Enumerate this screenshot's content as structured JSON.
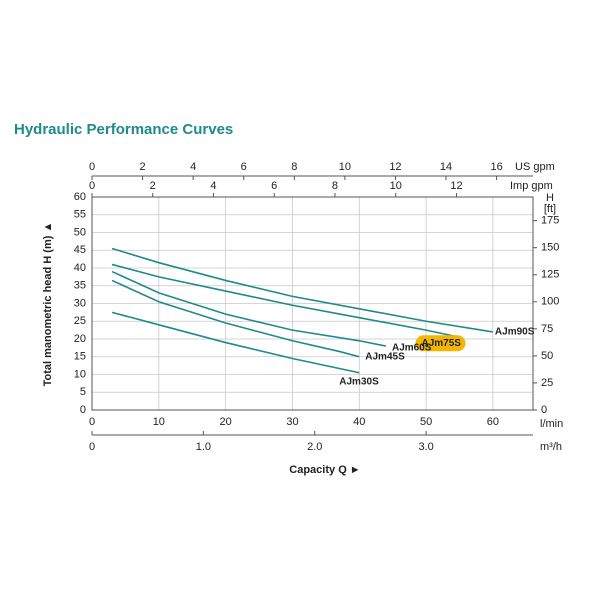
{
  "page_title": "Hydraulic Performance Curves",
  "chart_data": {
    "type": "line",
    "ylabel": "Total manometric head H (m) ▲",
    "xtitle": "Capacity Q ►",
    "xlabel": "l/min",
    "xlim": [
      0,
      66
    ],
    "xticks": [
      0,
      10,
      20,
      30,
      40,
      50,
      60
    ],
    "ylim": [
      0,
      60
    ],
    "yticks": [
      0,
      5,
      10,
      15,
      20,
      25,
      30,
      35,
      40,
      45,
      50,
      55,
      60
    ],
    "grid": true,
    "top_axes": [
      {
        "label": "US gpm",
        "lim": [
          0,
          17.44
        ],
        "ticks": [
          0,
          2,
          4,
          6,
          8,
          10,
          12,
          14,
          16
        ]
      },
      {
        "label": "Imp gpm",
        "lim": [
          0,
          14.52
        ],
        "ticks": [
          0,
          2,
          4,
          6,
          8,
          10,
          12
        ]
      }
    ],
    "bottom_axis2": {
      "label": "m³/h",
      "lim": [
        0,
        3.96
      ],
      "ticks": [
        0,
        {
          "value": 1,
          "label": "1.0"
        },
        {
          "value": 2,
          "label": "2.0"
        },
        {
          "value": 3,
          "label": "3.0"
        }
      ]
    },
    "y2": {
      "label": "H",
      "unit": "[ft]",
      "lim": [
        0,
        196.85
      ],
      "ticks": [
        0,
        25,
        50,
        75,
        100,
        125,
        150,
        175
      ]
    },
    "series": [
      {
        "name": "AJm90S",
        "color": "#1f8a8c",
        "x": [
          3,
          10,
          20,
          30,
          40,
          50,
          60
        ],
        "values": [
          45.5,
          41.5,
          36.5,
          32,
          28.5,
          25,
          22
        ]
      },
      {
        "name": "AJm75S",
        "color": "#1f8a8c",
        "highlight_color": "#f2b705",
        "x": [
          3,
          10,
          20,
          30,
          40,
          50,
          55
        ],
        "values": [
          41,
          37.5,
          33.5,
          29.5,
          26,
          22.5,
          20.5
        ]
      },
      {
        "name": "AJm60S",
        "color": "#1f8a8c",
        "x": [
          3,
          10,
          20,
          30,
          40,
          44
        ],
        "values": [
          39,
          33,
          27,
          22.5,
          19.5,
          18
        ]
      },
      {
        "name": "AJm45S",
        "color": "#1f8a8c",
        "x": [
          3,
          10,
          20,
          30,
          37,
          40
        ],
        "values": [
          36.5,
          30.5,
          24.5,
          19.5,
          16.5,
          15
        ]
      },
      {
        "name": "AJm30S",
        "color": "#1f8a8c",
        "x": [
          3,
          10,
          20,
          30,
          40
        ],
        "values": [
          27.5,
          24,
          19,
          14.5,
          10.5
        ]
      }
    ]
  }
}
